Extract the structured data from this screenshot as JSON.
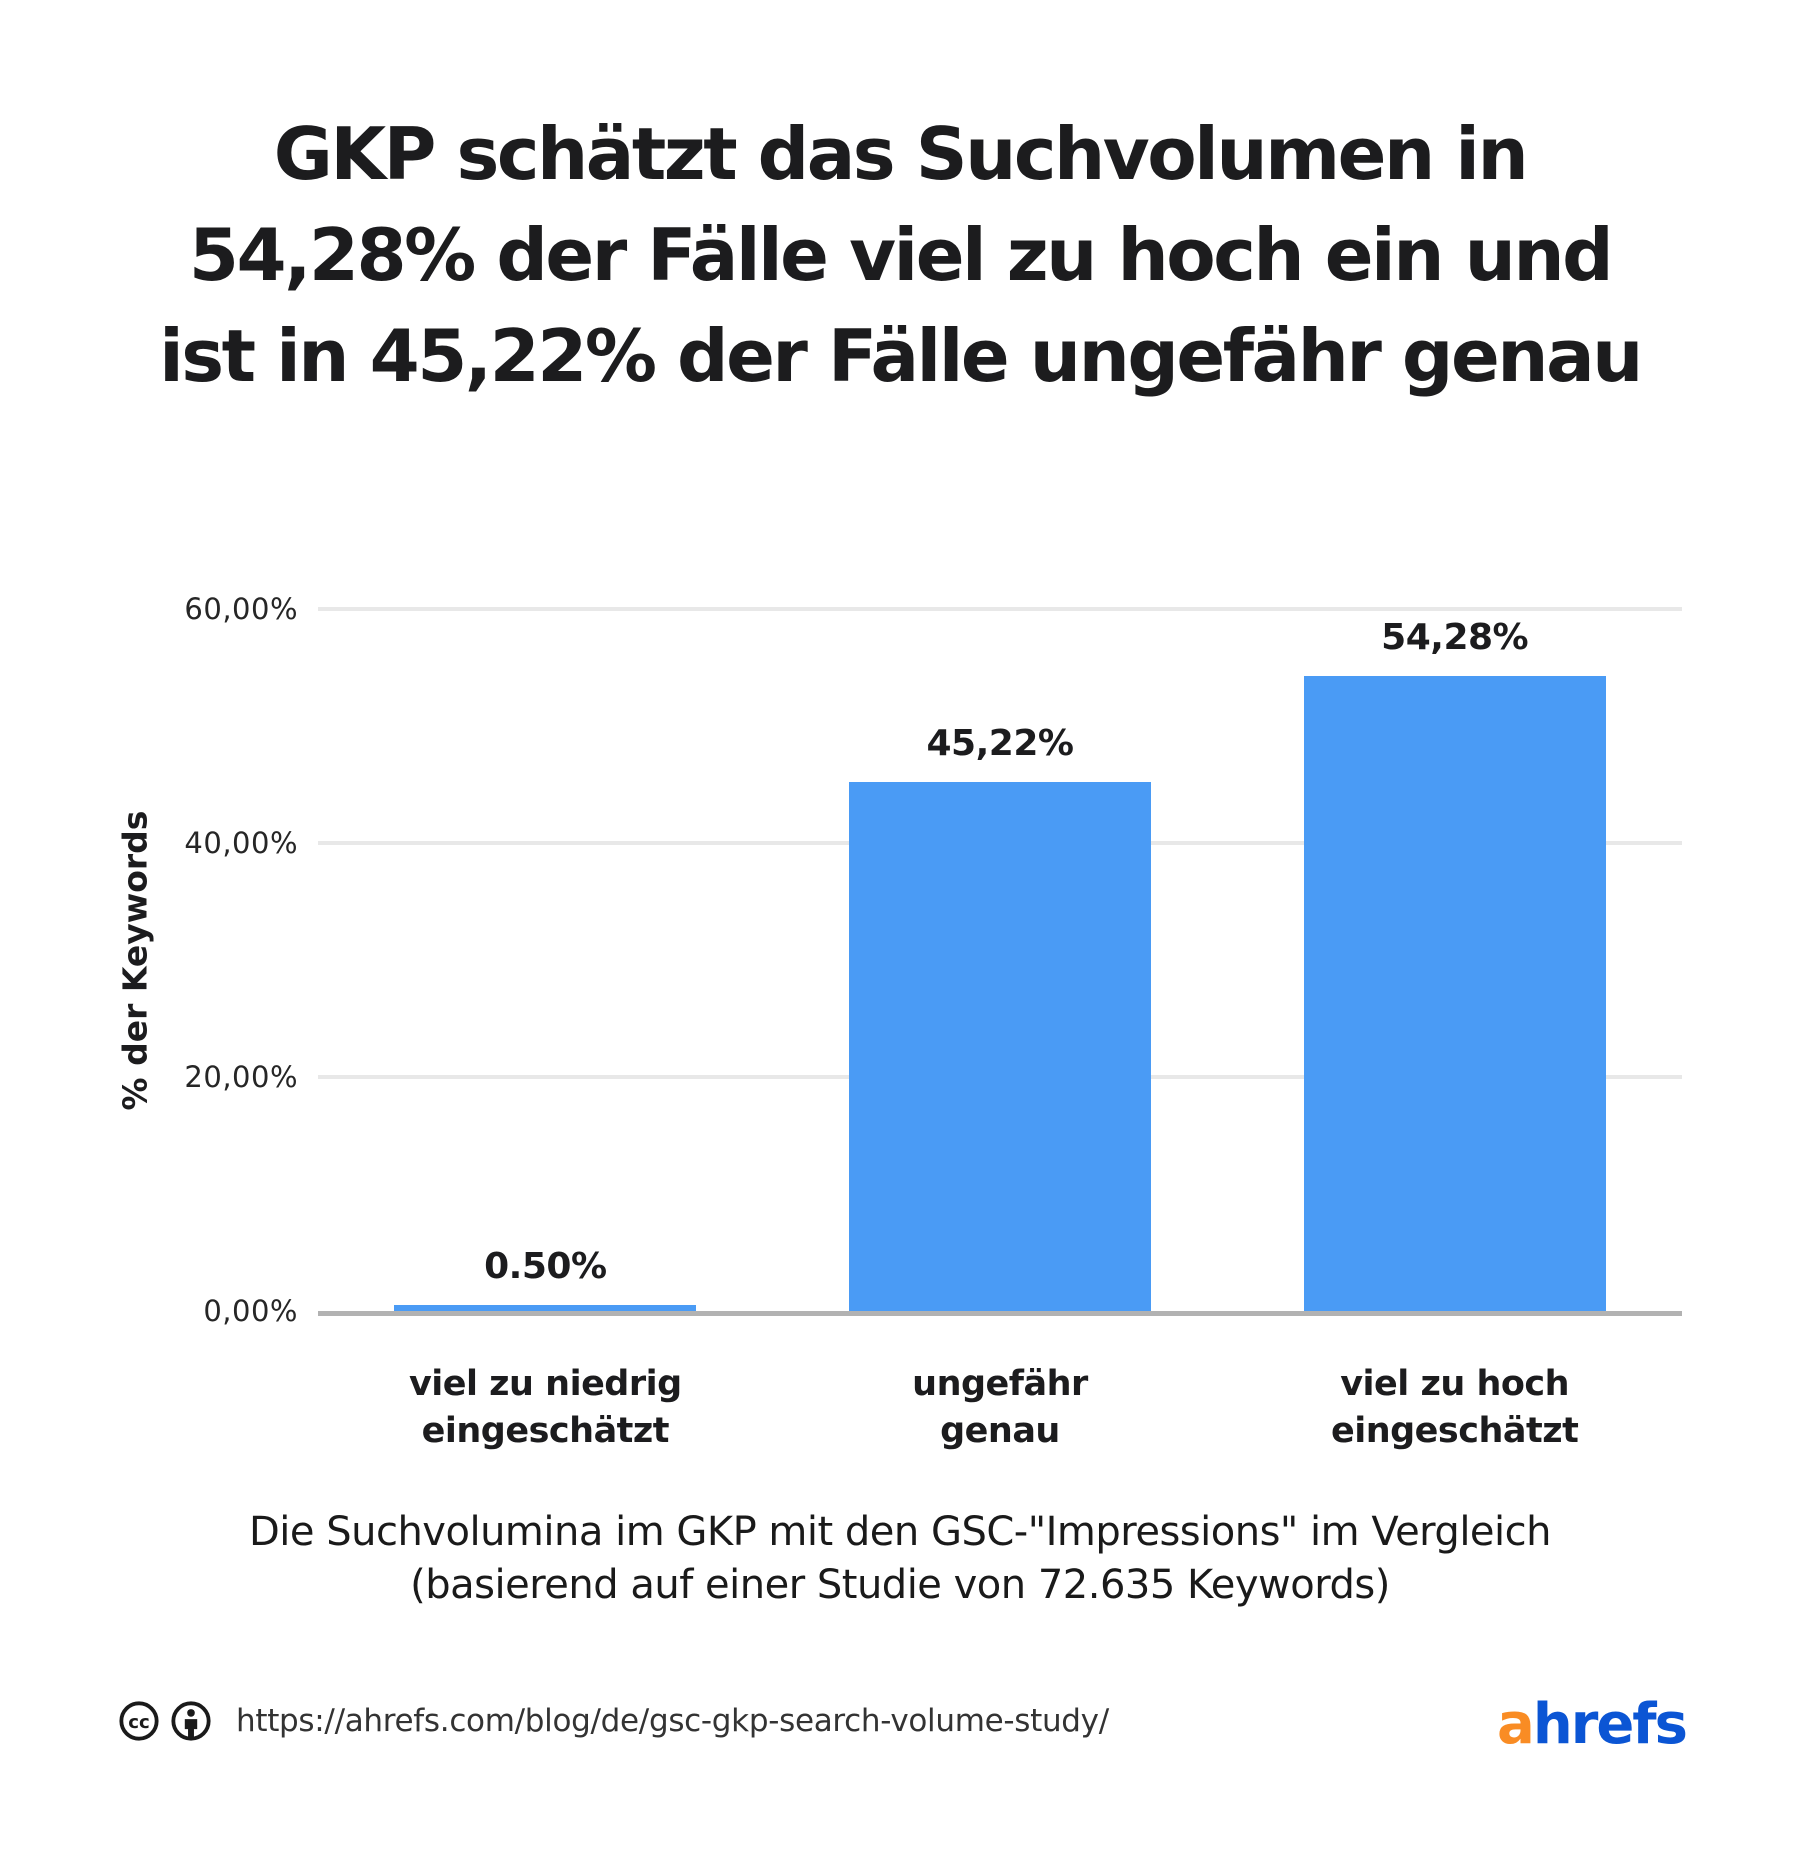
{
  "title": "GKP schätzt das Suchvolumen in\n54,28% der Fälle viel zu hoch ein und\nist in 45,22% der Fälle ungefähr genau",
  "caption": "Die Suchvolumina im GKP mit den GSC-\"Impressions\" im Vergleich\n(basierend auf einer Studie von 72.635 Keywords)",
  "footer": {
    "url": "https://ahrefs.com/blog/de/gsc-gkp-search-volume-study/",
    "license_icons": [
      "cc-icon",
      "cc-by-icon"
    ],
    "logo_first": "a",
    "logo_rest": "hrefs",
    "logo_orange": "#f98c24",
    "logo_blue": "#0b55d4"
  },
  "chart_data": {
    "type": "bar",
    "title": "GKP schätzt das Suchvolumen in 54,28% der Fälle viel zu hoch ein und ist in 45,22% der Fälle ungefähr genau",
    "categories": [
      "viel zu niedrig\neingeschätzt",
      "ungefähr\ngenau",
      "viel zu hoch\neingeschätzt"
    ],
    "values": [
      0.5,
      45.22,
      54.28
    ],
    "value_labels": [
      "0.50%",
      "45,22%",
      "54,28%"
    ],
    "xlabel": "",
    "ylabel": "% der Keywords",
    "ylim": [
      0,
      60
    ],
    "yticks": {
      "values": [
        60,
        40,
        20,
        0
      ],
      "labels": [
        "60,00%",
        "40,00%",
        "20,00%",
        "0,00%"
      ]
    },
    "grid": "horizontal",
    "legend": "none",
    "bar_color": "#4a9bf5",
    "gridline_color": "#e8e8e8",
    "axis_line_color": "#b2b2b2",
    "label_color": "#1c1c1e"
  }
}
